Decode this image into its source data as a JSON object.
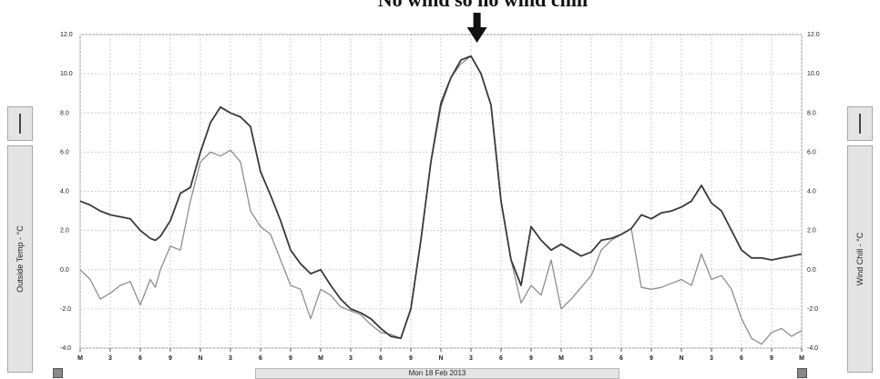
{
  "annotation": "No wind so no wind chill",
  "left_axis_label": "Outside Temp - °C",
  "right_axis_label": "Wind Chill - °C",
  "date_label": "Mon 18 Feb 2013",
  "colors": {
    "temp_line": "#3a3a3a",
    "chill_line": "#8e8e8e",
    "grid": "#cfcfcf",
    "arrow": "#111111"
  },
  "chart_data": {
    "type": "line",
    "title": "",
    "xlabel": "Mon 18 Feb 2013",
    "ylabel": "Outside Temp - °C",
    "ylabel_right": "Wind Chill - °C",
    "ylim": [
      -4,
      12
    ],
    "y_ticks": [
      "-4.0",
      "-2.0",
      "0.0",
      "2.0",
      "4.0",
      "6.0",
      "8.0",
      "10.0",
      "12.0"
    ],
    "x_range": [
      0,
      72
    ],
    "x_ticks": [
      "M",
      "3",
      "6",
      "9",
      "N",
      "3",
      "6",
      "9",
      "M",
      "3",
      "6",
      "9",
      "N",
      "3",
      "6",
      "9",
      "M",
      "3",
      "6",
      "9",
      "N",
      "3",
      "6",
      "9",
      "M"
    ],
    "grid": true,
    "series": [
      {
        "name": "Outside Temp - °C",
        "x": [
          0,
          1,
          2,
          3,
          4,
          5,
          6,
          7,
          7.5,
          8,
          9,
          10,
          11,
          12,
          13,
          14,
          15,
          16,
          17,
          18,
          19,
          20,
          21,
          22,
          23,
          24,
          25,
          26,
          27,
          28,
          29,
          30,
          31,
          32,
          33,
          34,
          35,
          36,
          37,
          38,
          39,
          40,
          41,
          42,
          43,
          44,
          45,
          46,
          47,
          48,
          49,
          50,
          51,
          52,
          53,
          54,
          55,
          56,
          57,
          58,
          59,
          60,
          61,
          62,
          63,
          64,
          65,
          66,
          67,
          68,
          69,
          70,
          71,
          72
        ],
        "y": [
          3.5,
          3.3,
          3.0,
          2.8,
          2.7,
          2.6,
          2.0,
          1.6,
          1.5,
          1.7,
          2.5,
          3.9,
          4.2,
          6.0,
          7.5,
          8.3,
          8.0,
          7.8,
          7.3,
          5.0,
          3.8,
          2.5,
          1.0,
          0.3,
          -0.2,
          0.0,
          -0.8,
          -1.5,
          -2.0,
          -2.2,
          -2.5,
          -3.0,
          -3.4,
          -3.5,
          -2.0,
          1.5,
          5.5,
          8.5,
          9.8,
          10.7,
          10.9,
          10.0,
          8.4,
          3.5,
          0.5,
          -0.8,
          2.2,
          1.5,
          1.0,
          1.3,
          1.0,
          0.7,
          0.9,
          1.5,
          1.6,
          1.8,
          2.1,
          2.8,
          2.6,
          2.9,
          3.0,
          3.2,
          3.5,
          4.3,
          3.4,
          3.0,
          2.0,
          1.0,
          0.6,
          0.6,
          0.5,
          0.6,
          0.7,
          0.8
        ]
      },
      {
        "name": "Wind Chill - °C",
        "x": [
          0,
          1,
          2,
          3,
          4,
          5,
          6,
          7,
          7.5,
          8,
          9,
          10,
          11,
          12,
          13,
          14,
          15,
          16,
          17,
          18,
          19,
          20,
          21,
          22,
          23,
          24,
          25,
          26,
          27,
          28,
          29,
          30,
          31,
          32,
          33,
          34,
          35,
          36,
          37,
          38,
          39,
          40,
          41,
          42,
          43,
          44,
          45,
          46,
          47,
          48,
          49,
          50,
          51,
          52,
          53,
          54,
          55,
          56,
          57,
          58,
          59,
          60,
          61,
          62,
          63,
          64,
          65,
          66,
          67,
          68,
          69,
          70,
          71,
          72
        ],
        "y": [
          0.0,
          -0.5,
          -1.5,
          -1.2,
          -0.8,
          -0.6,
          -1.8,
          -0.5,
          -0.9,
          0.0,
          1.2,
          1.0,
          3.5,
          5.5,
          6.0,
          5.8,
          6.1,
          5.5,
          3.0,
          2.2,
          1.8,
          0.5,
          -0.8,
          -1.0,
          -2.5,
          -1.0,
          -1.3,
          -1.9,
          -2.1,
          -2.3,
          -2.8,
          -3.2,
          -3.3,
          -3.5,
          -2.0,
          1.5,
          5.5,
          8.3,
          9.8,
          10.5,
          10.9,
          10.0,
          8.4,
          3.5,
          0.5,
          -1.7,
          -0.8,
          -1.3,
          0.5,
          -2.0,
          -1.5,
          -0.9,
          -0.3,
          1.0,
          1.5,
          1.8,
          2.1,
          -0.9,
          -1.0,
          -0.9,
          -0.7,
          -0.5,
          -0.8,
          0.8,
          -0.5,
          -0.3,
          -1.0,
          -2.5,
          -3.5,
          -3.8,
          -3.2,
          -3.0,
          -3.4,
          -3.1
        ]
      }
    ]
  }
}
